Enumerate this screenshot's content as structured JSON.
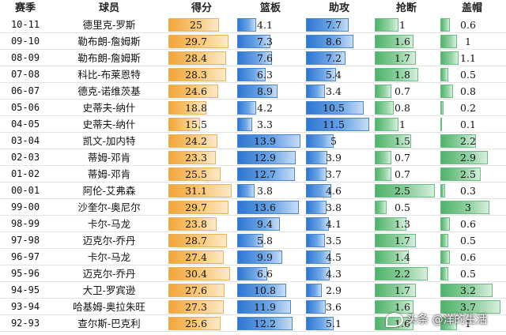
{
  "headers": {
    "season": "赛季",
    "player": "球员",
    "pts": "得分",
    "reb": "篮板",
    "ast": "助攻",
    "stl": "抢断",
    "blk": "盖帽"
  },
  "rows": [
    {
      "season": "10-11",
      "player": "德里克-罗斯",
      "pts": "25",
      "reb": "4.1",
      "ast": "7.7",
      "stl": "1",
      "blk": "0.6"
    },
    {
      "season": "09-10",
      "player": "勒布朗-詹姆斯",
      "pts": "29.7",
      "reb": "7.3",
      "ast": "8.6",
      "stl": "1.6",
      "blk": "1"
    },
    {
      "season": "08-09",
      "player": "勒布朗-詹姆斯",
      "pts": "28.4",
      "reb": "7.6",
      "ast": "7.2",
      "stl": "1.7",
      "blk": "1.1"
    },
    {
      "season": "07-08",
      "player": "科比-布莱恩特",
      "pts": "28.3",
      "reb": "6.3",
      "ast": "5.4",
      "stl": "1.8",
      "blk": "0.5"
    },
    {
      "season": "06-07",
      "player": "德克-诺维茨基",
      "pts": "24.6",
      "reb": "8.9",
      "ast": "3.4",
      "stl": "0.7",
      "blk": "0.8"
    },
    {
      "season": "05-06",
      "player": "史蒂夫-纳什",
      "pts": "18.8",
      "reb": "4.2",
      "ast": "10.5",
      "stl": "0.8",
      "blk": "0.2"
    },
    {
      "season": "04-05",
      "player": "史蒂夫-纳什",
      "pts": "15.5",
      "reb": "3.3",
      "ast": "11.5",
      "stl": "1",
      "blk": "0.1"
    },
    {
      "season": "03-04",
      "player": "凯文-加内特",
      "pts": "24.2",
      "reb": "13.9",
      "ast": "5",
      "stl": "1.5",
      "blk": "2.2"
    },
    {
      "season": "02-03",
      "player": "蒂姆-邓肯",
      "pts": "23.3",
      "reb": "12.9",
      "ast": "3.9",
      "stl": "0.7",
      "blk": "2.9"
    },
    {
      "season": "01-02",
      "player": "蒂姆-邓肯",
      "pts": "25.5",
      "reb": "12.7",
      "ast": "3.7",
      "stl": "0.7",
      "blk": "2.5"
    },
    {
      "season": "00-01",
      "player": "阿伦-艾弗森",
      "pts": "31.1",
      "reb": "3.8",
      "ast": "4.6",
      "stl": "2.5",
      "blk": "0.3"
    },
    {
      "season": "99-00",
      "player": "沙奎尔-奥尼尔",
      "pts": "29.7",
      "reb": "13.6",
      "ast": "3.8",
      "stl": "0.5",
      "blk": "3"
    },
    {
      "season": "98-99",
      "player": "卡尔-马龙",
      "pts": "23.8",
      "reb": "9.4",
      "ast": "4.1",
      "stl": "1.3",
      "blk": "0.6"
    },
    {
      "season": "97-98",
      "player": "迈克尔-乔丹",
      "pts": "28.7",
      "reb": "5.8",
      "ast": "3.5",
      "stl": "1.7",
      "blk": "0.5"
    },
    {
      "season": "96-97",
      "player": "卡尔-马龙",
      "pts": "27.4",
      "reb": "9.9",
      "ast": "4.5",
      "stl": "1.4",
      "blk": "0.6"
    },
    {
      "season": "95-96",
      "player": "迈克尔-乔丹",
      "pts": "30.4",
      "reb": "6.6",
      "ast": "4.3",
      "stl": "2.2",
      "blk": "0.5"
    },
    {
      "season": "94-95",
      "player": "大卫-罗宾逊",
      "pts": "27.6",
      "reb": "10.8",
      "ast": "2.9",
      "stl": "1.7",
      "blk": "3.2"
    },
    {
      "season": "93-94",
      "player": "哈基姆-奥拉朱旺",
      "pts": "27.3",
      "reb": "11.9",
      "ast": "3.6",
      "stl": "1.6",
      "blk": "3.7"
    },
    {
      "season": "92-93",
      "player": "查尔斯-巴克利",
      "pts": "25.6",
      "reb": "12.2",
      "ast": "5.1",
      "stl": "1.6",
      "blk": "1"
    }
  ],
  "watermark": "头条 @洋的生活",
  "colors": {
    "points_bar": "#f3a53a",
    "rebounds_bar": "#2e76d2",
    "assists_bar": "#2e76d2",
    "steals_bar": "#4fb36a",
    "blocks_bar": "#4fb36a"
  }
}
